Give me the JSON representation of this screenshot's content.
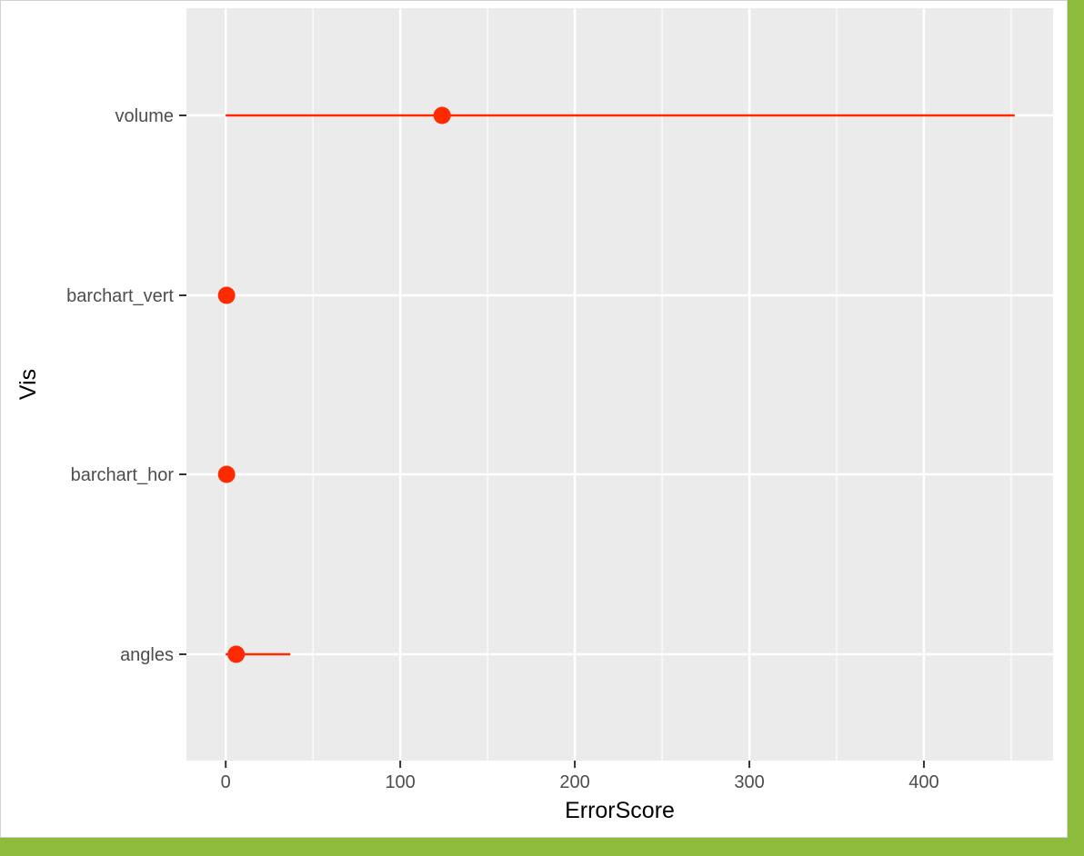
{
  "chart_data": {
    "type": "scatter",
    "subtype": "point-range",
    "title": "",
    "xlabel": "ErrorScore",
    "ylabel": "Vis",
    "xlim": [
      -22.5,
      474
    ],
    "x_ticks": [
      0,
      100,
      200,
      300,
      400
    ],
    "x_minor_ticks": [
      50,
      150,
      250,
      350,
      450
    ],
    "categories": [
      "volume",
      "barchart_vert",
      "barchart_hor",
      "angles"
    ],
    "points": [
      {
        "category": "volume",
        "value": 124,
        "low": 0,
        "high": 452
      },
      {
        "category": "barchart_vert",
        "value": 0.5,
        "low": 0,
        "high": 0.5
      },
      {
        "category": "barchart_hor",
        "value": 0.5,
        "low": 0,
        "high": 0.5
      },
      {
        "category": "angles",
        "value": 6,
        "low": 0,
        "high": 37
      }
    ],
    "grid": true,
    "legend": "none",
    "colors": {
      "point": "#ff2a00",
      "panel": "#ebebeb",
      "grid": "#ffffff",
      "frame_accent": "#8dbb3c"
    }
  }
}
